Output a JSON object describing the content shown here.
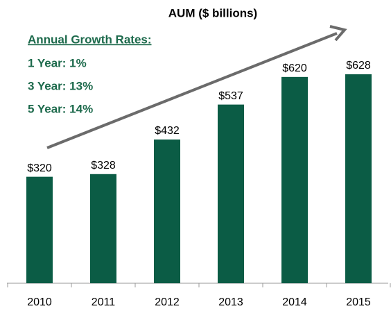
{
  "chart_data": {
    "type": "bar",
    "title": "AUM ($ billions)",
    "annotations": {
      "heading": "Annual Growth Rates:",
      "lines": [
        "1 Year: 1%",
        "3 Year: 13%",
        "5 Year: 14%"
      ]
    },
    "categories": [
      "2010",
      "2011",
      "2012",
      "2013",
      "2014",
      "2015"
    ],
    "values": [
      320,
      328,
      432,
      537,
      620,
      628
    ],
    "value_labels": [
      "$320",
      "$328",
      "$432",
      "$537",
      "$620",
      "$628"
    ],
    "color": "#0b5c45"
  }
}
